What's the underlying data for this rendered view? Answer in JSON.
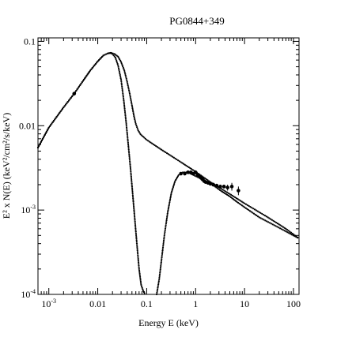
{
  "chart_data": {
    "type": "scatter",
    "title": "PG0844+349",
    "xlabel": "Energy E (keV)",
    "ylabel": "E² x N(E) (keV²/cm²/s/keV)",
    "xscale": "log",
    "yscale": "log",
    "xlim": [
      0.0006,
      130
    ],
    "ylim": [
      0.0001,
      0.11
    ],
    "x_ticks": [
      {
        "value": 0.001,
        "base": "10",
        "exp": "-3"
      },
      {
        "value": 0.01,
        "text": "0.01"
      },
      {
        "value": 0.1,
        "text": "0.1"
      },
      {
        "value": 1,
        "text": "1"
      },
      {
        "value": 10,
        "text": "10"
      },
      {
        "value": 100,
        "text": "100"
      }
    ],
    "y_ticks": [
      {
        "value": 0.0001,
        "base": "10",
        "exp": "-4"
      },
      {
        "value": 0.001,
        "base": "10",
        "exp": "-3"
      },
      {
        "value": 0.01,
        "text": "0.01"
      },
      {
        "value": 0.1,
        "text": "0.1"
      }
    ],
    "grid": false,
    "legend": "none",
    "series": [
      {
        "style": "dense line of points",
        "x": [
          0.0006,
          0.001,
          0.002,
          0.0033,
          0.005,
          0.007,
          0.01,
          0.013,
          0.016,
          0.019,
          0.022,
          0.026,
          0.03,
          0.035,
          0.04,
          0.045,
          0.05,
          0.055,
          0.06,
          0.067,
          0.075,
          0.1,
          0.2,
          0.5,
          1.0,
          2.0,
          5.0,
          10,
          30,
          70,
          130
        ],
        "y": [
          0.0055,
          0.0095,
          0.0165,
          0.024,
          0.034,
          0.045,
          0.058,
          0.068,
          0.072,
          0.073,
          0.071,
          0.066,
          0.057,
          0.045,
          0.033,
          0.024,
          0.0175,
          0.013,
          0.0105,
          0.0088,
          0.0079,
          0.0068,
          0.0052,
          0.0037,
          0.00285,
          0.00215,
          0.00155,
          0.0012,
          0.00082,
          0.0006,
          0.00046
        ]
      },
      {
        "style": "dense line of points",
        "x": [
          0.0006,
          0.001,
          0.002,
          0.0033,
          0.005,
          0.007,
          0.01,
          0.013,
          0.016,
          0.018,
          0.02,
          0.023,
          0.026,
          0.03,
          0.034,
          0.038,
          0.042,
          0.047,
          0.052,
          0.057,
          0.063,
          0.07,
          0.077,
          0.085,
          0.093
        ],
        "y": [
          0.0055,
          0.0095,
          0.0165,
          0.024,
          0.034,
          0.045,
          0.058,
          0.068,
          0.072,
          0.073,
          0.071,
          0.064,
          0.052,
          0.035,
          0.02,
          0.011,
          0.006,
          0.003,
          0.0015,
          0.0008,
          0.0004,
          0.0002,
          0.00013,
          0.00011,
          0.0001
        ]
      },
      {
        "style": "dense line of points",
        "x": [
          0.16,
          0.18,
          0.2,
          0.23,
          0.27,
          0.32,
          0.38,
          0.45,
          0.55,
          0.7,
          0.9,
          1.2,
          1.6,
          2.0,
          2.5,
          3.5,
          5.0,
          7.0,
          10,
          20,
          50,
          130
        ],
        "y": [
          0.0001,
          0.00015,
          0.00025,
          0.0005,
          0.00095,
          0.0016,
          0.0022,
          0.0026,
          0.0028,
          0.0028,
          0.0026,
          0.0024,
          0.0022,
          0.0021,
          0.0019,
          0.00165,
          0.00145,
          0.00125,
          0.00108,
          0.00082,
          0.00062,
          0.00046
        ]
      },
      {
        "style": "data points with error bars",
        "x": [
          0.0033,
          0.5,
          0.6,
          0.7,
          0.8,
          0.9,
          1.0,
          1.1,
          1.2,
          1.3,
          1.4,
          1.5,
          1.6,
          1.8,
          2.0,
          2.3,
          2.7,
          3.2,
          3.8,
          4.5,
          5.5,
          7.5
        ],
        "y": [
          0.024,
          0.0027,
          0.0027,
          0.0028,
          0.0028,
          0.0027,
          0.0028,
          0.0026,
          0.0025,
          0.0024,
          0.0023,
          0.0022,
          0.00215,
          0.0021,
          0.00205,
          0.002,
          0.00195,
          0.0019,
          0.0019,
          0.00185,
          0.0019,
          0.0017
        ],
        "yerr": [
          0.0003,
          0.0001,
          0.0001,
          0.0001,
          0.0001,
          0.0001,
          0.00015,
          0.00015,
          0.00015,
          0.00015,
          0.0001,
          0.0001,
          0.0001,
          0.0001,
          0.0001,
          0.0001,
          0.0001,
          0.0001,
          0.0001,
          0.00015,
          0.0002,
          0.0002
        ]
      }
    ]
  }
}
